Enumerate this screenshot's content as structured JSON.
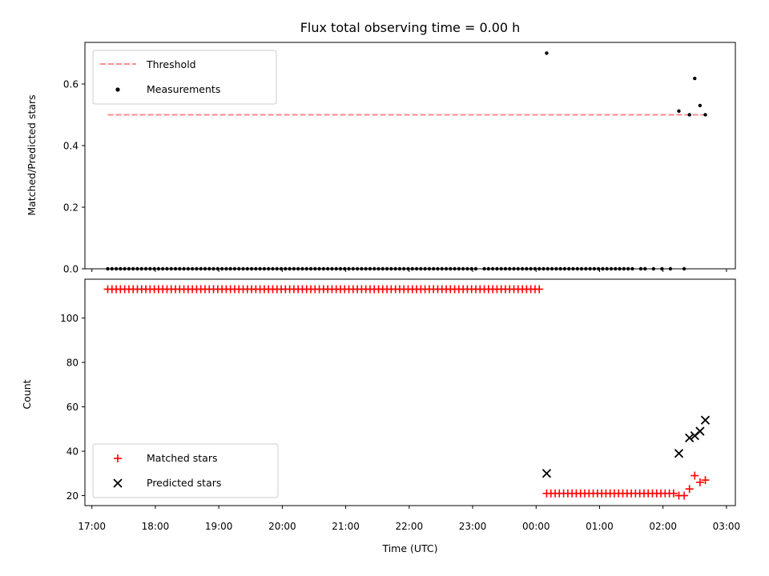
{
  "chart_data": {
    "title": "Flux total observing time = 0.00 h",
    "xlabel": "Time (UTC)",
    "x_ticks": [
      "17:00",
      "18:00",
      "19:00",
      "20:00",
      "21:00",
      "22:00",
      "23:00",
      "00:00",
      "01:00",
      "02:00",
      "03:00"
    ],
    "x_start_hour": 17,
    "x_range_hours": [
      16.89,
      27.14
    ],
    "panels": [
      {
        "type": "scatter",
        "ylabel": "Matched/Predicted stars",
        "ylim": [
          0.0,
          0.735
        ],
        "y_ticks": [
          0.0,
          0.2,
          0.4,
          0.6
        ],
        "y_tick_labels": [
          "0.0",
          "0.2",
          "0.4",
          "0.6"
        ],
        "legend_position": "top-left",
        "threshold": {
          "name": "Threshold",
          "value": 0.5,
          "x_from": "17:15",
          "x_to": "02:40",
          "color": "#ff7f7f",
          "style": "dashed"
        },
        "series": [
          {
            "name": "Measurements",
            "color": "#000000",
            "marker": "dot",
            "x_start": "17:15",
            "x_step_minutes": 4,
            "count": 136,
            "y_default": 0.0,
            "overrides": {
              "88": 0.7,
              "125": 0.512,
              "128": 0.5,
              "130": 0.618,
              "132": 0.53,
              "134": 0.5
            },
            "missing": [
              88,
              125,
              128,
              130,
              132,
              134
            ],
            "extra_points": [
              {
                "x": "00:10",
                "y": 0.7
              },
              {
                "x": "02:15",
                "y": 0.512
              },
              {
                "x": "02:25",
                "y": 0.5
              },
              {
                "x": "02:30",
                "y": 0.618
              },
              {
                "x": "02:35",
                "y": 0.53
              },
              {
                "x": "02:40",
                "y": 0.5
              },
              {
                "x": "02:20",
                "y": 0.0
              }
            ]
          }
        ]
      },
      {
        "type": "scatter",
        "ylabel": "Count",
        "ylim": [
          15.5,
          117.5
        ],
        "y_ticks": [
          20,
          40,
          60,
          80,
          100
        ],
        "y_tick_labels": [
          "20",
          "40",
          "60",
          "80",
          "100"
        ],
        "legend_position": "bottom-left",
        "series": [
          {
            "name": "Matched stars",
            "color": "#ff0000",
            "marker": "plus",
            "segments": [
              {
                "x_start": "17:15",
                "x_end": "00:05",
                "step_minutes": 4,
                "y": 113
              },
              {
                "x_start": "00:10",
                "x_end": "02:10",
                "step_minutes": 4,
                "y": 21
              }
            ],
            "points": [
              {
                "x": "02:15",
                "y": 20
              },
              {
                "x": "02:20",
                "y": 20
              },
              {
                "x": "02:25",
                "y": 23
              },
              {
                "x": "02:30",
                "y": 29
              },
              {
                "x": "02:35",
                "y": 26
              },
              {
                "x": "02:40",
                "y": 27
              }
            ]
          },
          {
            "name": "Predicted stars",
            "color": "#000000",
            "marker": "x",
            "points": [
              {
                "x": "00:10",
                "y": 30
              },
              {
                "x": "02:15",
                "y": 39
              },
              {
                "x": "02:25",
                "y": 46
              },
              {
                "x": "02:30",
                "y": 47
              },
              {
                "x": "02:35",
                "y": 49
              },
              {
                "x": "02:40",
                "y": 54
              }
            ]
          }
        ]
      }
    ]
  }
}
